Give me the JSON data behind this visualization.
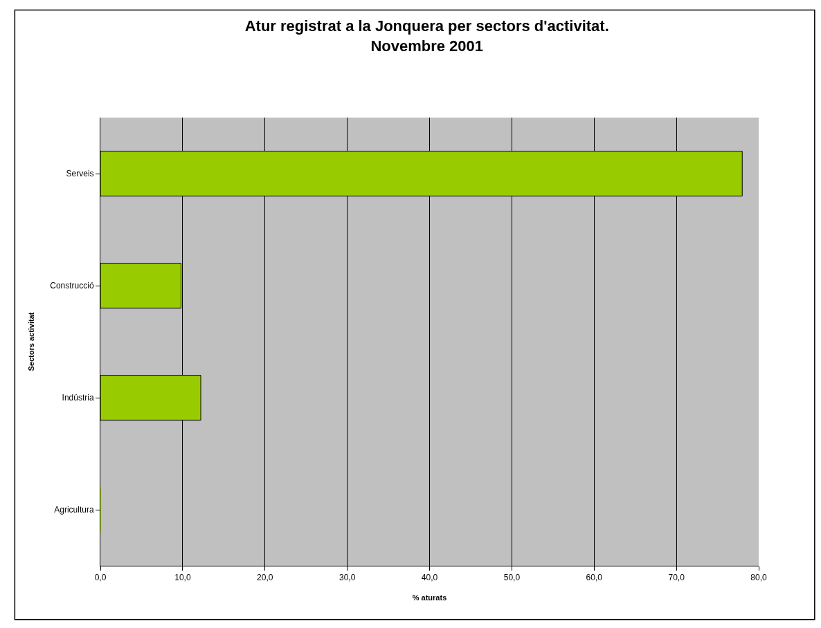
{
  "chart_data": {
    "type": "bar",
    "orientation": "horizontal",
    "title": "Atur registrat a la Jonquera per sectors d'activitat.\nNovembre 2001",
    "xlabel": "% aturats",
    "ylabel": "Sectors activitat",
    "categories": [
      "Serveis",
      "Construcció",
      "Indústria",
      "Agricultura"
    ],
    "values": [
      78.0,
      9.8,
      12.2,
      0.0
    ],
    "color": "#99cc00",
    "xlim": [
      0,
      80
    ],
    "xticks": [
      {
        "value": 0,
        "label": "0,0"
      },
      {
        "value": 10,
        "label": "10,0"
      },
      {
        "value": 20,
        "label": "20,0"
      },
      {
        "value": 30,
        "label": "30,0"
      },
      {
        "value": 40,
        "label": "40,0"
      },
      {
        "value": 50,
        "label": "50,0"
      },
      {
        "value": 60,
        "label": "60,0"
      },
      {
        "value": 70,
        "label": "70,0"
      },
      {
        "value": 80,
        "label": "80,0"
      }
    ],
    "grid": "x",
    "legend": false
  }
}
